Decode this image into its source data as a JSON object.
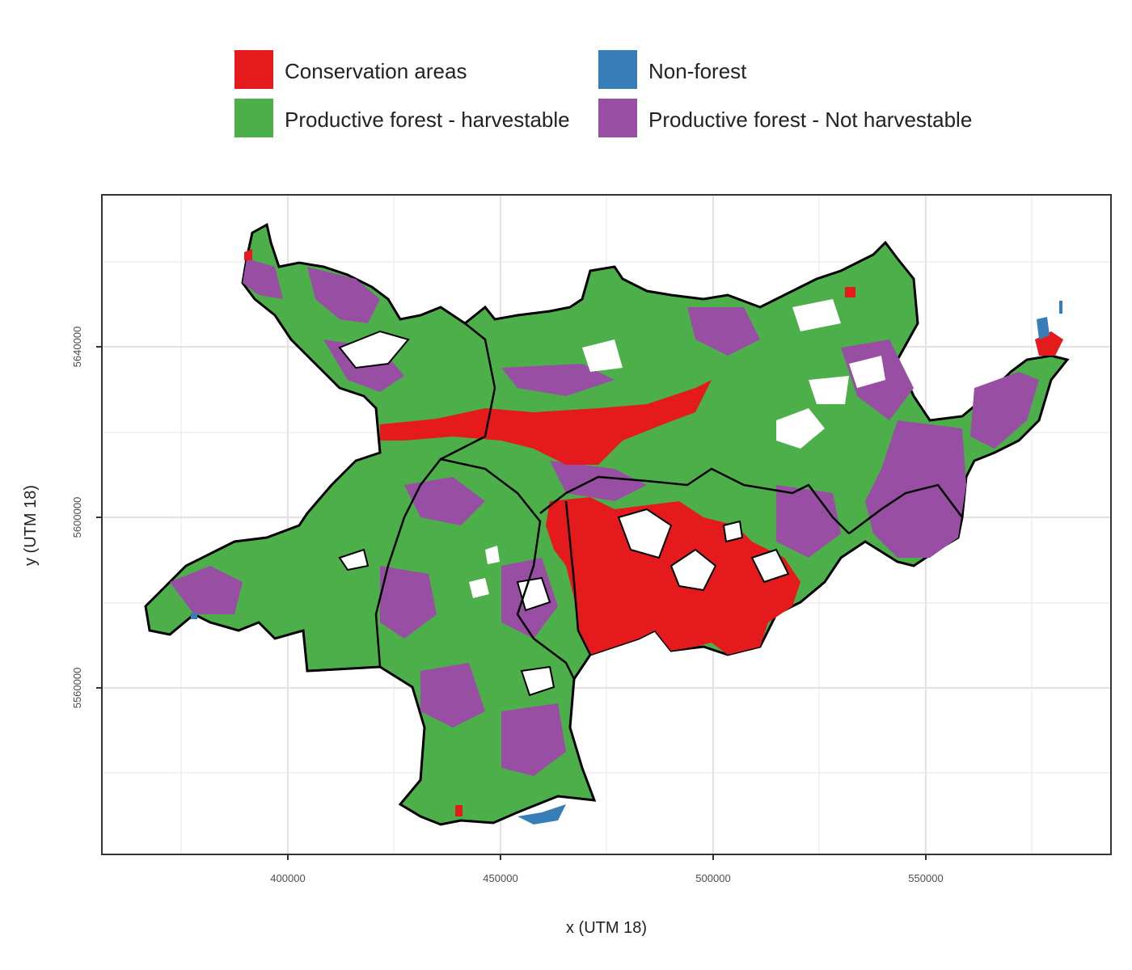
{
  "legend": {
    "items": [
      {
        "label": "Conservation areas",
        "color": "#E41A1C"
      },
      {
        "label": "Non-forest",
        "color": "#377EB8"
      },
      {
        "label": "Productive forest - harvestable",
        "color": "#4DAF4A"
      },
      {
        "label": "Productive forest - Not harvestable",
        "color": "#984EA3"
      }
    ]
  },
  "axes": {
    "xlabel": "x (UTM 18)",
    "ylabel": "y (UTM 18)",
    "xticks": [
      "400000",
      "450000",
      "500000",
      "550000"
    ],
    "yticks": [
      "5560000",
      "5600000",
      "5640000"
    ]
  },
  "map": {
    "background": "#ffffff",
    "grid": true,
    "boundary_color": "#000000"
  }
}
